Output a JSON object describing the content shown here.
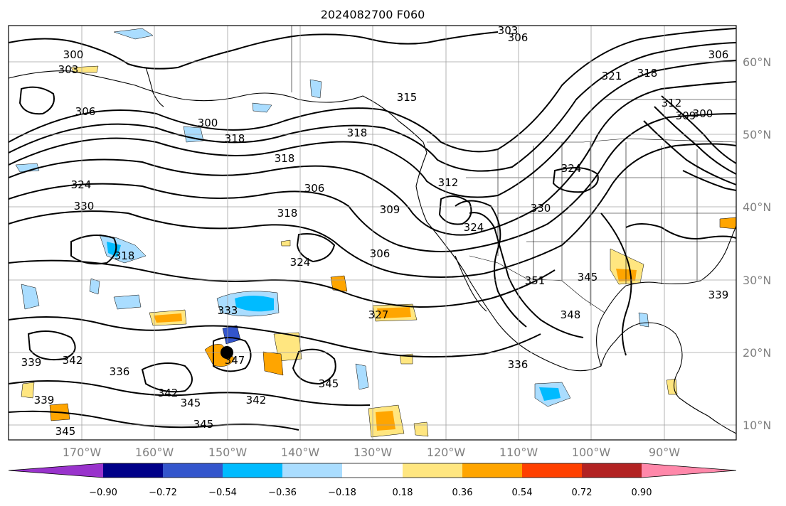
{
  "title": "2024082700 F060",
  "lon_labels": [
    "170°W",
    "160°W",
    "150°W",
    "140°W",
    "130°W",
    "120°W",
    "110°W",
    "100°W",
    "90°W"
  ],
  "lat_labels": [
    "60°N",
    "50°N",
    "40°N",
    "30°N",
    "20°N",
    "10°N"
  ],
  "colorbar": {
    "colors": [
      "#9933cc",
      "#000088",
      "#3355cc",
      "#00bbff",
      "#aaddff",
      "#ffffff",
      "#ffe680",
      "#ffa500",
      "#ff4000",
      "#b22222",
      "#ff88aa"
    ],
    "tick_labels": [
      "−0.90",
      "−0.72",
      "−0.54",
      "−0.36",
      "−0.18",
      "0.18",
      "0.36",
      "0.54",
      "0.72",
      "0.90"
    ]
  },
  "contour_labels": [
    "303",
    "306",
    "300",
    "303",
    "306",
    "300",
    "318",
    "315",
    "318",
    "321",
    "318",
    "312",
    "309",
    "300",
    "306",
    "318",
    "324",
    "330",
    "306",
    "318",
    "312",
    "309",
    "306",
    "324",
    "330",
    "324",
    "318",
    "324",
    "345",
    "351",
    "333",
    "327",
    "348",
    "345",
    "339",
    "342",
    "336",
    "342",
    "347",
    "345",
    "342",
    "336",
    "339",
    "345",
    "345",
    "339"
  ],
  "marker": "circle",
  "colors": {
    "axes": "#000000",
    "tick_label": "#808080",
    "grid": "#a0a0a0"
  }
}
